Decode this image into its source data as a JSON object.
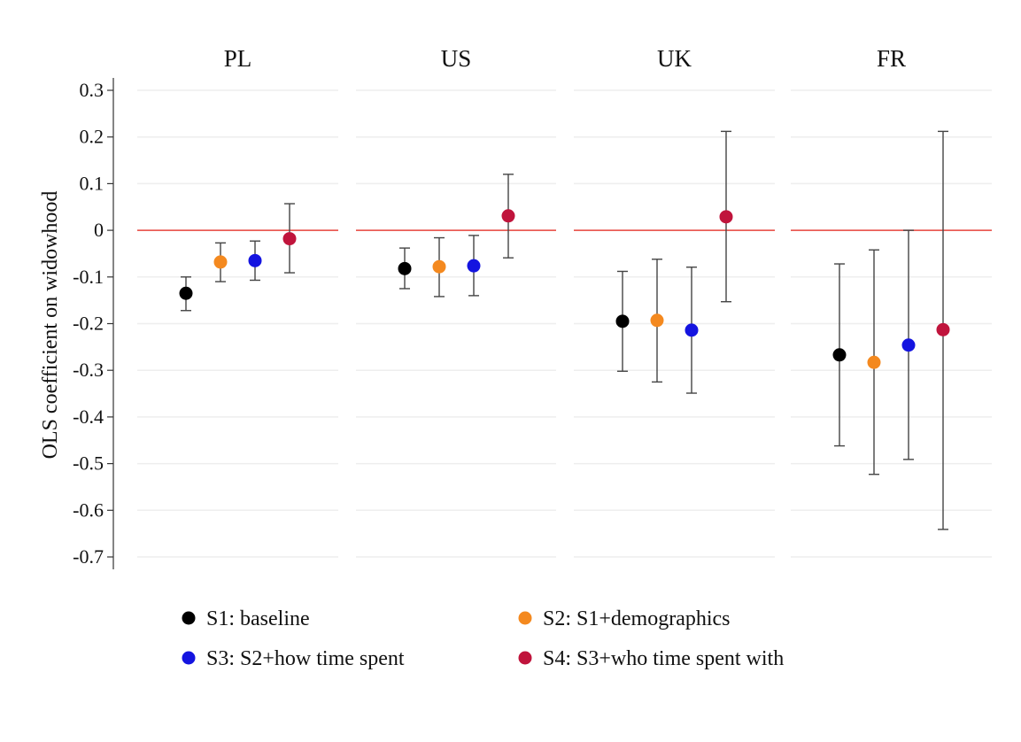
{
  "chart_data": {
    "type": "scatter",
    "subtype": "coefficient-plot-with-confidence-intervals",
    "ylabel": "OLS coefficient on widowhood",
    "ylim": [
      -0.7,
      0.3
    ],
    "yticks": [
      0.3,
      0.2,
      0.1,
      0,
      -0.1,
      -0.2,
      -0.3,
      -0.4,
      -0.5,
      -0.6,
      -0.7
    ],
    "ytick_labels": [
      "0.3",
      "0.2",
      "0.1",
      "0",
      "-0.1",
      "-0.2",
      "-0.3",
      "-0.4",
      "-0.5",
      "-0.6",
      "-0.7"
    ],
    "grid": true,
    "reference_line": {
      "y": 0,
      "color": "#e8453c"
    },
    "legend_placement": "bottom",
    "panels": [
      "PL",
      "US",
      "UK",
      "FR"
    ],
    "series": [
      {
        "name": "S1: baseline",
        "color": "#000000",
        "points": [
          {
            "panel": "PL",
            "y": -0.135,
            "lo": -0.172,
            "hi": -0.1
          },
          {
            "panel": "US",
            "y": -0.082,
            "lo": -0.125,
            "hi": -0.038
          },
          {
            "panel": "UK",
            "y": -0.195,
            "lo": -0.302,
            "hi": -0.088
          },
          {
            "panel": "FR",
            "y": -0.267,
            "lo": -0.462,
            "hi": -0.072
          }
        ]
      },
      {
        "name": "S2: S1+demographics",
        "color": "#f4891f",
        "points": [
          {
            "panel": "PL",
            "y": -0.068,
            "lo": -0.11,
            "hi": -0.027
          },
          {
            "panel": "US",
            "y": -0.078,
            "lo": -0.142,
            "hi": -0.016
          },
          {
            "panel": "UK",
            "y": -0.193,
            "lo": -0.325,
            "hi": -0.062
          },
          {
            "panel": "FR",
            "y": -0.283,
            "lo": -0.523,
            "hi": -0.042
          }
        ]
      },
      {
        "name": "S3: S2+how time spent",
        "color": "#1414e0",
        "points": [
          {
            "panel": "PL",
            "y": -0.065,
            "lo": -0.107,
            "hi": -0.023
          },
          {
            "panel": "US",
            "y": -0.076,
            "lo": -0.14,
            "hi": -0.011
          },
          {
            "panel": "UK",
            "y": -0.214,
            "lo": -0.349,
            "hi": -0.079
          },
          {
            "panel": "FR",
            "y": -0.246,
            "lo": -0.491,
            "hi": 0.0
          }
        ]
      },
      {
        "name": "S4: S3+who time spent with",
        "color": "#c0143c",
        "points": [
          {
            "panel": "PL",
            "y": -0.018,
            "lo": -0.091,
            "hi": 0.057
          },
          {
            "panel": "US",
            "y": 0.031,
            "lo": -0.059,
            "hi": 0.12
          },
          {
            "panel": "UK",
            "y": 0.029,
            "lo": -0.153,
            "hi": 0.212
          },
          {
            "panel": "FR",
            "y": -0.213,
            "lo": -0.641,
            "hi": 0.212
          }
        ]
      }
    ]
  }
}
